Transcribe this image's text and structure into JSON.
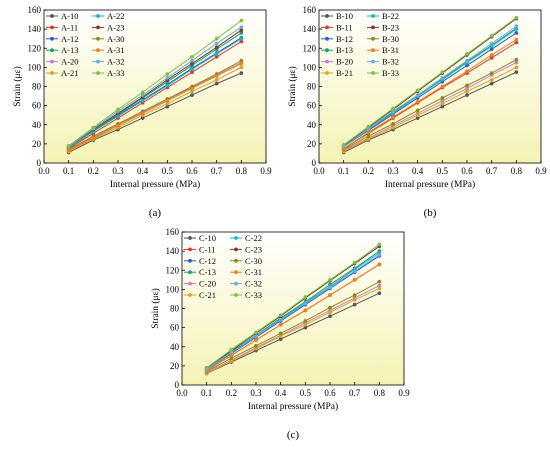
{
  "chart_data": [
    {
      "type": "line",
      "caption": "(a)",
      "xlabel": "Internal pressure (MPa)",
      "ylabel": "Strain (με)",
      "xlim": [
        0.0,
        0.9
      ],
      "ylim": [
        0,
        160
      ],
      "x_ticks": [
        "0.0",
        "0.1",
        "0.2",
        "0.3",
        "0.4",
        "0.5",
        "0.6",
        "0.7",
        "0.8",
        "0.9"
      ],
      "y_ticks": [
        "0",
        "20",
        "40",
        "60",
        "80",
        "100",
        "120",
        "140",
        "160"
      ],
      "grid": false,
      "background": "vertical gradient white to light yellow",
      "legend_position": "top-left",
      "x": [
        0.1,
        0.2,
        0.3,
        0.4,
        0.5,
        0.6,
        0.7,
        0.8
      ],
      "series": [
        {
          "name": "A-10",
          "color": "#555555",
          "marker": "circle",
          "values": [
            11,
            24,
            35,
            47,
            59,
            71,
            83,
            94
          ]
        },
        {
          "name": "A-11",
          "color": "#e8352a",
          "marker": "circle",
          "values": [
            15,
            31,
            47,
            63,
            79,
            95,
            111,
            127
          ]
        },
        {
          "name": "A-12",
          "color": "#2a5bd7",
          "marker": "circle",
          "values": [
            16,
            33,
            50,
            66,
            82,
            99,
            115,
            131
          ]
        },
        {
          "name": "A-13",
          "color": "#1aa06d",
          "marker": "circle",
          "values": [
            17,
            34,
            51,
            68,
            85,
            102,
            119,
            136
          ]
        },
        {
          "name": "A-20",
          "color": "#c77dd4",
          "marker": "circle",
          "values": [
            13,
            27,
            40,
            53,
            66,
            79,
            92,
            105
          ]
        },
        {
          "name": "A-21",
          "color": "#e0a21a",
          "marker": "circle",
          "values": [
            12,
            25,
            37,
            50,
            62,
            75,
            87,
            100
          ]
        },
        {
          "name": "A-22",
          "color": "#19b8c4",
          "marker": "circle",
          "values": [
            16,
            33,
            49,
            65,
            81,
            98,
            114,
            130
          ]
        },
        {
          "name": "A-23",
          "color": "#7a3b2e",
          "marker": "circle",
          "values": [
            17,
            35,
            52,
            69,
            87,
            104,
            121,
            139
          ]
        },
        {
          "name": "A-30",
          "color": "#8a8a17",
          "marker": "circle",
          "values": [
            14,
            28,
            41,
            54,
            67,
            80,
            93,
            107
          ]
        },
        {
          "name": "A-31",
          "color": "#f07d1e",
          "marker": "circle",
          "values": [
            13,
            26,
            39,
            52,
            65,
            78,
            91,
            104
          ]
        },
        {
          "name": "A-32",
          "color": "#6fa8dc",
          "marker": "circle",
          "values": [
            17,
            36,
            54,
            71,
            89,
            107,
            125,
            142
          ]
        },
        {
          "name": "A-33",
          "color": "#7cc144",
          "marker": "circle",
          "values": [
            18,
            37,
            56,
            74,
            93,
            111,
            130,
            149
          ]
        }
      ]
    },
    {
      "type": "line",
      "caption": "(b)",
      "xlabel": "Internal pressure (MPa)",
      "ylabel": "Strain (με)",
      "xlim": [
        0.0,
        0.9
      ],
      "ylim": [
        0,
        160
      ],
      "x_ticks": [
        "0.0",
        "0.1",
        "0.2",
        "0.3",
        "0.4",
        "0.5",
        "0.6",
        "0.7",
        "0.8",
        "0.9"
      ],
      "y_ticks": [
        "0",
        "20",
        "40",
        "60",
        "80",
        "100",
        "120",
        "140",
        "160"
      ],
      "grid": false,
      "background": "vertical gradient white to light yellow",
      "legend_position": "top-left",
      "x": [
        0.1,
        0.2,
        0.3,
        0.4,
        0.5,
        0.6,
        0.7,
        0.8
      ],
      "series": [
        {
          "name": "B-10",
          "color": "#555555",
          "marker": "circle",
          "values": [
            11,
            24,
            35,
            47,
            59,
            71,
            83,
            95
          ]
        },
        {
          "name": "B-11",
          "color": "#e8352a",
          "marker": "circle",
          "values": [
            15,
            31,
            47,
            63,
            79,
            94,
            110,
            126
          ]
        },
        {
          "name": "B-12",
          "color": "#2a5bd7",
          "marker": "circle",
          "values": [
            17,
            34,
            51,
            68,
            85,
            102,
            119,
            136
          ]
        },
        {
          "name": "B-13",
          "color": "#1aa06d",
          "marker": "circle",
          "values": [
            17,
            35,
            53,
            70,
            88,
            106,
            123,
            141
          ]
        },
        {
          "name": "B-20",
          "color": "#c77dd4",
          "marker": "circle",
          "values": [
            13,
            26,
            39,
            52,
            65,
            78,
            92,
            105
          ]
        },
        {
          "name": "B-21",
          "color": "#e0a21a",
          "marker": "circle",
          "values": [
            12,
            25,
            37,
            50,
            62,
            75,
            87,
            100
          ]
        },
        {
          "name": "B-22",
          "color": "#19b8c4",
          "marker": "circle",
          "values": [
            17,
            35,
            52,
            70,
            87,
            105,
            122,
            140
          ]
        },
        {
          "name": "B-23",
          "color": "#7a3b2e",
          "marker": "circle",
          "values": [
            18,
            37,
            56,
            75,
            94,
            113,
            132,
            151
          ]
        },
        {
          "name": "B-30",
          "color": "#8a8a17",
          "marker": "circle",
          "values": [
            14,
            28,
            41,
            55,
            68,
            81,
            94,
            108
          ]
        },
        {
          "name": "B-31",
          "color": "#f07d1e",
          "marker": "circle",
          "values": [
            15,
            32,
            48,
            64,
            80,
            96,
            113,
            129
          ]
        },
        {
          "name": "B-32",
          "color": "#6fa8dc",
          "marker": "circle",
          "values": [
            17,
            36,
            54,
            71,
            89,
            107,
            125,
            143
          ]
        },
        {
          "name": "B-33",
          "color": "#7cc144",
          "marker": "circle",
          "values": [
            19,
            38,
            57,
            76,
            95,
            114,
            133,
            152
          ]
        }
      ]
    },
    {
      "type": "line",
      "caption": "(c)",
      "xlabel": "Internal pressure (MPa)",
      "ylabel": "Strain (με)",
      "xlim": [
        0.0,
        0.9
      ],
      "ylim": [
        0,
        160
      ],
      "x_ticks": [
        "0.0",
        "0.1",
        "0.2",
        "0.3",
        "0.4",
        "0.5",
        "0.6",
        "0.7",
        "0.8",
        "0.9"
      ],
      "y_ticks": [
        "0",
        "20",
        "40",
        "60",
        "80",
        "100",
        "120",
        "140",
        "160"
      ],
      "grid": false,
      "background": "vertical gradient white to light yellow",
      "legend_position": "top-left",
      "x": [
        0.1,
        0.2,
        0.3,
        0.4,
        0.5,
        0.6,
        0.7,
        0.8
      ],
      "series": [
        {
          "name": "C-10",
          "color": "#555555",
          "marker": "circle",
          "values": [
            12,
            24,
            36,
            48,
            60,
            72,
            84,
            96
          ]
        },
        {
          "name": "C-11",
          "color": "#e8352a",
          "marker": "circle",
          "values": [
            15,
            31,
            47,
            63,
            78,
            94,
            110,
            126
          ]
        },
        {
          "name": "C-12",
          "color": "#2a5bd7",
          "marker": "circle",
          "values": [
            16,
            33,
            50,
            67,
            84,
            101,
            118,
            135
          ]
        },
        {
          "name": "C-13",
          "color": "#1aa06d",
          "marker": "circle",
          "values": [
            17,
            35,
            52,
            70,
            87,
            105,
            122,
            140
          ]
        },
        {
          "name": "C-20",
          "color": "#c77dd4",
          "marker": "circle",
          "values": [
            13,
            26,
            39,
            52,
            65,
            78,
            91,
            104
          ]
        },
        {
          "name": "C-21",
          "color": "#e0a21a",
          "marker": "circle",
          "values": [
            12,
            25,
            38,
            51,
            63,
            76,
            89,
            101
          ]
        },
        {
          "name": "C-22",
          "color": "#19b8c4",
          "marker": "circle",
          "values": [
            17,
            34,
            52,
            69,
            86,
            103,
            121,
            138
          ]
        },
        {
          "name": "C-23",
          "color": "#7a3b2e",
          "marker": "circle",
          "values": [
            18,
            36,
            54,
            72,
            91,
            109,
            127,
            145
          ]
        },
        {
          "name": "C-30",
          "color": "#8a8a17",
          "marker": "circle",
          "values": [
            14,
            28,
            41,
            54,
            67,
            81,
            94,
            108
          ]
        },
        {
          "name": "C-31",
          "color": "#f07d1e",
          "marker": "circle",
          "values": [
            15,
            31,
            47,
            63,
            78,
            94,
            110,
            126
          ]
        },
        {
          "name": "C-32",
          "color": "#6fa8dc",
          "marker": "circle",
          "values": [
            16,
            34,
            51,
            68,
            85,
            102,
            119,
            136
          ]
        },
        {
          "name": "C-33",
          "color": "#7cc144",
          "marker": "circle",
          "values": [
            18,
            37,
            55,
            73,
            92,
            110,
            128,
            147
          ]
        }
      ]
    }
  ]
}
